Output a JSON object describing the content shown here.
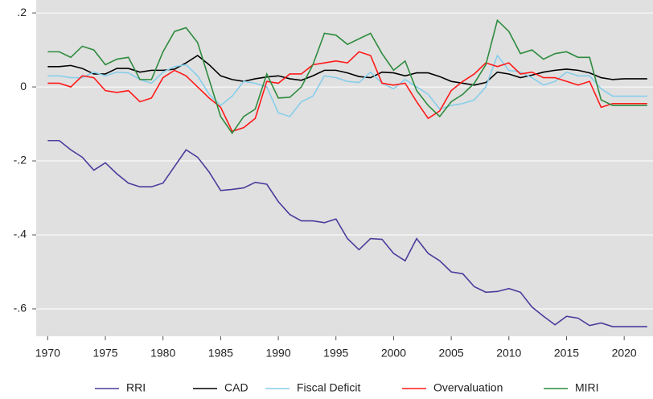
{
  "chart_data": {
    "type": "line",
    "x": [
      1970,
      1971,
      1972,
      1973,
      1974,
      1975,
      1976,
      1977,
      1978,
      1979,
      1980,
      1981,
      1982,
      1983,
      1984,
      1985,
      1986,
      1987,
      1988,
      1989,
      1990,
      1991,
      1992,
      1993,
      1994,
      1995,
      1996,
      1997,
      1998,
      1999,
      2000,
      2001,
      2002,
      2003,
      2004,
      2005,
      2006,
      2007,
      2008,
      2009,
      2010,
      2011,
      2012,
      2013,
      2014,
      2015,
      2016,
      2017,
      2018,
      2019,
      2020,
      2021,
      2022
    ],
    "xlim": [
      1969,
      2022.5
    ],
    "xticks": [
      1970,
      1975,
      1980,
      1985,
      1990,
      1995,
      2000,
      2005,
      2010,
      2015,
      2020
    ],
    "ylim": [
      -0.674,
      0.235
    ],
    "yticks": [
      {
        "value": 0.2,
        "label": ".2"
      },
      0,
      {
        "value": -0.2,
        "label": "-.2"
      },
      {
        "value": -0.4,
        "label": "-.4"
      },
      {
        "value": -0.6,
        "label": "-.6"
      }
    ],
    "grid": true,
    "legend": "bottom",
    "series": [
      {
        "name": "RRI",
        "color": "#4b3c9c",
        "values": [
          -0.145,
          -0.145,
          -0.17,
          -0.19,
          -0.225,
          -0.205,
          -0.235,
          -0.26,
          -0.27,
          -0.27,
          -0.26,
          -0.215,
          -0.17,
          -0.19,
          -0.23,
          -0.28,
          -0.277,
          -0.273,
          -0.258,
          -0.263,
          -0.31,
          -0.345,
          -0.362,
          -0.362,
          -0.367,
          -0.357,
          -0.41,
          -0.44,
          -0.41,
          -0.412,
          -0.45,
          -0.47,
          -0.41,
          -0.45,
          -0.47,
          -0.5,
          -0.505,
          -0.54,
          -0.555,
          -0.553,
          -0.545,
          -0.555,
          -0.595,
          -0.62,
          -0.643,
          -0.62,
          -0.625,
          -0.645,
          -0.638,
          -0.648,
          -0.648,
          -0.648,
          -0.648
        ]
      },
      {
        "name": "CAD",
        "color": "#000000",
        "values": [
          0.055,
          0.055,
          0.058,
          0.05,
          0.035,
          0.035,
          0.05,
          0.05,
          0.04,
          0.045,
          0.045,
          0.048,
          0.065,
          0.085,
          0.06,
          0.03,
          0.02,
          0.015,
          0.022,
          0.027,
          0.03,
          0.022,
          0.018,
          0.03,
          0.045,
          0.045,
          0.038,
          0.028,
          0.025,
          0.04,
          0.038,
          0.03,
          0.038,
          0.038,
          0.028,
          0.015,
          0.01,
          0.005,
          0.012,
          0.04,
          0.035,
          0.025,
          0.032,
          0.04,
          0.045,
          0.048,
          0.045,
          0.038,
          0.025,
          0.02,
          0.022,
          0.022,
          0.022
        ]
      },
      {
        "name": "Fiscal Deficit",
        "color": "#87ceeb",
        "values": [
          0.03,
          0.03,
          0.025,
          0.025,
          0.04,
          0.03,
          0.04,
          0.038,
          0.02,
          0.01,
          0.04,
          0.055,
          0.06,
          0.03,
          -0.02,
          -0.05,
          -0.025,
          0.015,
          0.01,
          0,
          -0.07,
          -0.08,
          -0.04,
          -0.025,
          0.03,
          0.025,
          0.015,
          0.012,
          0.04,
          0.01,
          -0.005,
          0.02,
          0,
          -0.02,
          -0.06,
          -0.05,
          -0.045,
          -0.035,
          0,
          0.085,
          0.045,
          0.04,
          0.025,
          0.005,
          0.015,
          0.04,
          0.03,
          0.03,
          -0.005,
          -0.025,
          -0.025,
          -0.025,
          -0.025
        ]
      },
      {
        "name": "Overvaluation",
        "color": "#ff1a1a",
        "values": [
          0.01,
          0.01,
          0,
          0.03,
          0.025,
          -0.01,
          -0.015,
          -0.01,
          -0.04,
          -0.03,
          0.025,
          0.045,
          0.03,
          0,
          -0.03,
          -0.055,
          -0.12,
          -0.11,
          -0.085,
          0.015,
          0.01,
          0.035,
          0.035,
          0.06,
          0.065,
          0.07,
          0.065,
          0.095,
          0.085,
          0.01,
          0.005,
          0.01,
          -0.04,
          -0.085,
          -0.065,
          -0.01,
          0.015,
          0.035,
          0.065,
          0.055,
          0.065,
          0.035,
          0.04,
          0.025,
          0.025,
          0.015,
          0.005,
          0.015,
          -0.055,
          -0.045,
          -0.045,
          -0.045,
          -0.045
        ]
      },
      {
        "name": "MIRI",
        "color": "#2e8b3e",
        "values": [
          0.095,
          0.095,
          0.08,
          0.11,
          0.1,
          0.06,
          0.075,
          0.08,
          0.02,
          0.02,
          0.095,
          0.15,
          0.16,
          0.12,
          0.02,
          -0.08,
          -0.125,
          -0.08,
          -0.06,
          0.035,
          -0.03,
          -0.028,
          0,
          0.06,
          0.145,
          0.14,
          0.115,
          0.13,
          0.145,
          0.09,
          0.045,
          0.07,
          -0.01,
          -0.05,
          -0.08,
          -0.04,
          -0.02,
          0.01,
          0.06,
          0.18,
          0.15,
          0.09,
          0.1,
          0.075,
          0.09,
          0.095,
          0.08,
          0.08,
          -0.035,
          -0.05,
          -0.05,
          -0.05,
          -0.05
        ]
      }
    ]
  }
}
